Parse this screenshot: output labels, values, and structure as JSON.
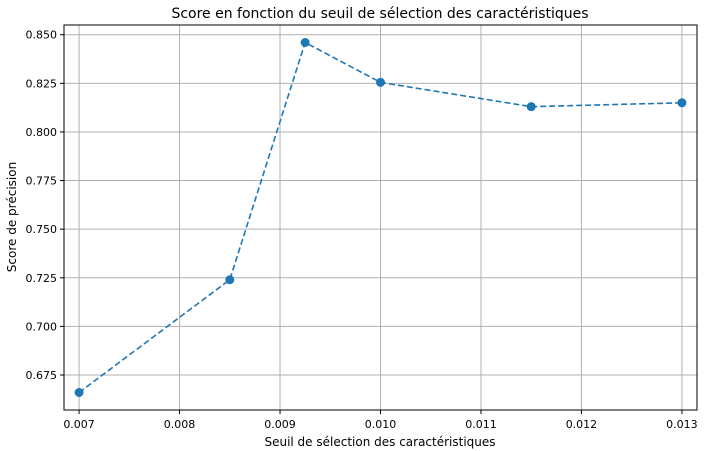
{
  "chart_data": {
    "type": "line",
    "title": "Score en fonction du seuil de sélection des caractéristiques",
    "xlabel": "Seuil de sélection des caractéristiques",
    "ylabel": "Score de précision",
    "x": [
      0.007,
      0.0085,
      0.00925,
      0.01,
      0.0115,
      0.013
    ],
    "series": [
      {
        "values": [
          0.666,
          0.724,
          0.846,
          0.8255,
          0.813,
          0.815
        ],
        "color": "#1f77b4",
        "line_style": "dashed",
        "marker": "circle"
      }
    ],
    "xlim": [
      0.00685,
      0.01315
    ],
    "ylim": [
      0.657,
      0.855
    ],
    "x_ticks": [
      0.007,
      0.008,
      0.009,
      0.01,
      0.011,
      0.012,
      0.013
    ],
    "x_tick_labels": [
      "0.007",
      "0.008",
      "0.009",
      "0.010",
      "0.011",
      "0.012",
      "0.013"
    ],
    "y_ticks": [
      0.675,
      0.7,
      0.725,
      0.75,
      0.775,
      0.8,
      0.825,
      0.85
    ],
    "y_tick_labels": [
      "0.675",
      "0.700",
      "0.725",
      "0.750",
      "0.775",
      "0.800",
      "0.825",
      "0.850"
    ],
    "grid": true,
    "legend": false
  }
}
